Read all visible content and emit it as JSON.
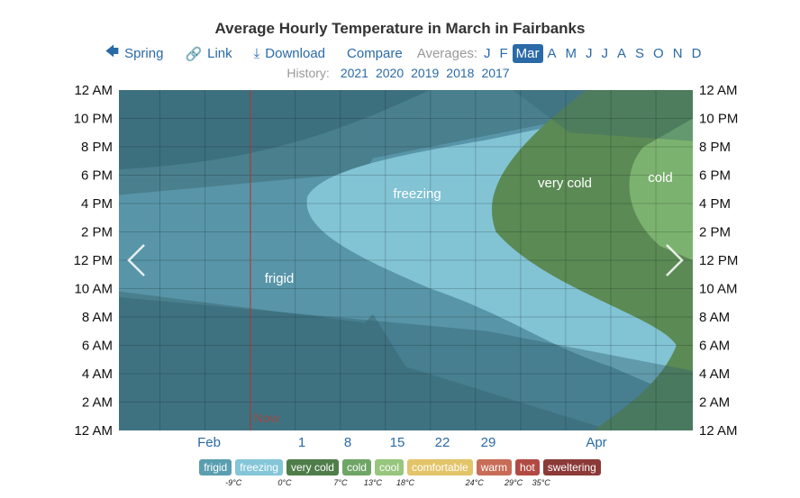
{
  "title": "Average Hourly Temperature in March in Fairbanks",
  "toolbar": {
    "spring_label": "Spring",
    "link_label": "Link",
    "download_label": "Download",
    "compare_label": "Compare",
    "averages_label": "Averages:",
    "months": [
      "J",
      "F",
      "Mar",
      "A",
      "M",
      "J",
      "J",
      "A",
      "S",
      "O",
      "N",
      "D"
    ],
    "active_month_index": 2,
    "icons": {
      "spring": "arrow-left-icon",
      "link": "link-icon",
      "download": "download-icon"
    }
  },
  "history": {
    "label": "History:",
    "years": [
      "2021",
      "2020",
      "2019",
      "2018",
      "2017"
    ]
  },
  "chart_data": {
    "type": "heatmap",
    "title": "Average Hourly Temperature in March in Fairbanks",
    "x_labels": [
      "Feb",
      "1",
      "8",
      "15",
      "22",
      "29",
      "Apr"
    ],
    "y_labels_left": [
      "12 AM",
      "10 PM",
      "8 PM",
      "6 PM",
      "4 PM",
      "2 PM",
      "12 PM",
      "10 AM",
      "8 AM",
      "6 AM",
      "4 AM",
      "2 AM",
      "12 AM"
    ],
    "y_labels_right": [
      "12 AM",
      "10 PM",
      "8 PM",
      "6 PM",
      "4 PM",
      "2 PM",
      "12 PM",
      "10 AM",
      "8 AM",
      "6 AM",
      "4 AM",
      "2 AM",
      "12 AM"
    ],
    "region_labels": [
      "frigid",
      "freezing",
      "very cold",
      "cold"
    ],
    "now_label": "Now",
    "colors": {
      "frigid": "#4a8a9e",
      "freezing": "#80c4d6",
      "very_cold": "#5b8c55",
      "cold": "#7db472",
      "now": "#c0392b"
    }
  },
  "legend": {
    "bands": [
      {
        "label": "frigid",
        "color": "#5a9eb0"
      },
      {
        "label": "freezing",
        "color": "#84c6d8"
      },
      {
        "label": "very cold",
        "color": "#4f7d4a"
      },
      {
        "label": "cold",
        "color": "#6fa566"
      },
      {
        "label": "cool",
        "color": "#97c67c"
      },
      {
        "label": "comfortable",
        "color": "#e3c468"
      },
      {
        "label": "warm",
        "color": "#c86c58"
      },
      {
        "label": "hot",
        "color": "#b24a44"
      },
      {
        "label": "sweltering",
        "color": "#8b3a38"
      }
    ],
    "thresholds": [
      "-9°C",
      "0°C",
      "7°C",
      "13°C",
      "18°C",
      "24°C",
      "29°C",
      "35°C"
    ]
  }
}
